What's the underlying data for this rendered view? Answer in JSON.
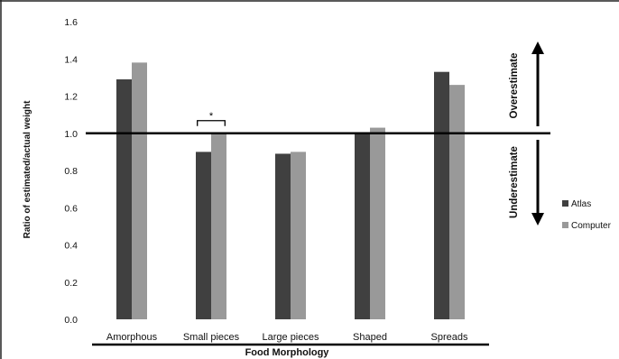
{
  "chart_data": {
    "type": "bar",
    "categories": [
      "Amorphous",
      "Small pieces",
      "Large pieces",
      "Shaped",
      "Spreads"
    ],
    "series": [
      {
        "name": "Atlas",
        "values": [
          1.29,
          0.9,
          0.89,
          1.0,
          1.33
        ],
        "color": "#404040"
      },
      {
        "name": "Computer",
        "values": [
          1.38,
          1.0,
          0.9,
          1.03,
          1.26
        ],
        "color": "#999999"
      }
    ],
    "xlabel": "Food Morphology",
    "ylabel": "Ratio of estimated/actual weight",
    "ylim": [
      0,
      1.6
    ],
    "yticks": [
      "0.0",
      "0.2",
      "0.4",
      "0.6",
      "0.8",
      "1.0",
      "1.2",
      "1.4",
      "1.6"
    ],
    "reference_line": {
      "value": 1.0,
      "color": "#000000"
    },
    "significance": {
      "category": "Small pieces",
      "label": "*"
    },
    "annotations": {
      "above": "Overestimate",
      "below": "Underestimate"
    },
    "legend_position": "right",
    "grid": false
  }
}
